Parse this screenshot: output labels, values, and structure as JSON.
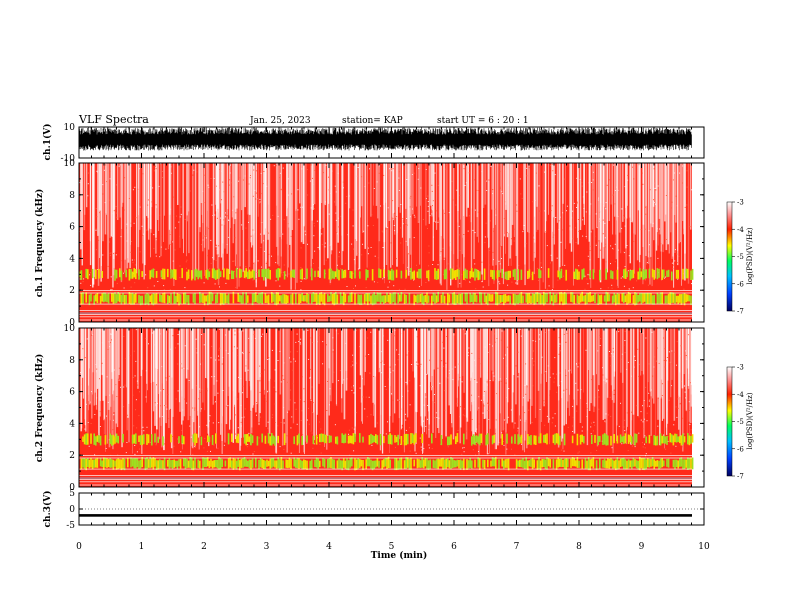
{
  "header": {
    "title": "VLF Spectra",
    "date": "Jan. 25, 2023",
    "station": "station= KAP",
    "start": "start UT =  6 : 20 : 1"
  },
  "chart_data": [
    {
      "type": "line",
      "ylabel": "ch.1(V)",
      "ylim": [
        -10,
        10
      ],
      "yticks": [
        "10",
        "-10"
      ],
      "x_range_min": [
        0,
        9.83
      ],
      "series": [
        {
          "trace": "dense broadband noise, roughly -5 to +10 V"
        }
      ]
    },
    {
      "type": "heatmap",
      "ylabel": "ch.1 Frequency (kHz)",
      "ylim": [
        0,
        10
      ],
      "yticks": [
        "0",
        "2",
        "4",
        "6",
        "8",
        "10"
      ],
      "colorbar": {
        "label": "log(PSD)(V²/Hz)",
        "range": [
          -7,
          -3
        ],
        "ticks": [
          "-3",
          "-4",
          "-5",
          "-6",
          "-7"
        ]
      }
    },
    {
      "type": "heatmap",
      "ylabel": "ch.2 Frequency (kHz)",
      "ylim": [
        0,
        10
      ],
      "yticks": [
        "0",
        "2",
        "4",
        "6",
        "8",
        "10"
      ],
      "colorbar": {
        "label": "log(PSD)(V²/Hz)",
        "range": [
          -7,
          -3
        ],
        "ticks": [
          "-3",
          "-4",
          "-5",
          "-6",
          "-7"
        ]
      }
    },
    {
      "type": "line",
      "ylabel": "ch.3(V)",
      "ylim": [
        -5,
        5
      ],
      "yticks": [
        "5",
        "0",
        "-5"
      ],
      "series": [
        {
          "trace": "near-constant band around -2 V"
        }
      ]
    }
  ],
  "xaxis": {
    "label": "Time  (min)",
    "ticks": [
      "0",
      "1",
      "2",
      "3",
      "4",
      "5",
      "6",
      "7",
      "8",
      "9",
      "10"
    ],
    "range": [
      0,
      10
    ]
  },
  "colors": {
    "psd_low": "#000080",
    "psd_mid_blue": "#0050ff",
    "psd_green": "#22dd22",
    "psd_yellow": "#ffee00",
    "psd_red": "#ff0000",
    "psd_high": "#ffffff"
  }
}
